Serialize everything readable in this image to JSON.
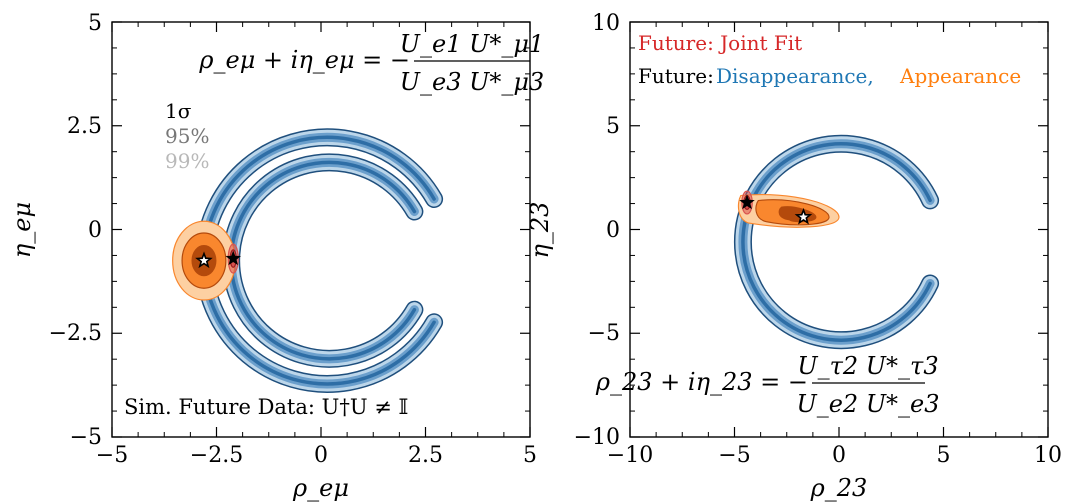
{
  "colors": {
    "blue_outer": "#bcd6ea",
    "blue_mid": "#6b9fcc",
    "blue_core": "#2e6ea6",
    "blue_edge": "#1f4f7d",
    "orange_outer": "#fdd0a2",
    "orange_mid": "#f9872e",
    "orange_core": "#b44a0c",
    "red_joint": "#d9534f",
    "legend_red": "#d62728",
    "legend_blue": "#1f77b4",
    "legend_orange": "#ff7f0e",
    "cl_1sigma": "#000000",
    "cl_95": "#777777",
    "cl_99": "#b8b8b8"
  },
  "chart_data": [
    {
      "type": "contour",
      "title": "",
      "formula": {
        "lhs": "ρ_eμ + iη_eμ = −",
        "numerator": "U_e1 U*_μ1",
        "denominator": "U_e3 U*_μ3"
      },
      "xlabel": "ρ_eμ",
      "ylabel": "η_eμ",
      "xlim": [
        -5,
        5
      ],
      "ylim": [
        -5,
        5
      ],
      "xticks": [
        "−5",
        "−2.5",
        "0",
        "2.5",
        "5"
      ],
      "yticks": [
        "−5",
        "−2.5",
        "0",
        "2.5",
        "5"
      ],
      "confidence_levels": [
        "1σ",
        "95%",
        "99%"
      ],
      "annotation": "Sim. Future Data: U†U ≠ 𝕀",
      "regions": [
        {
          "name": "Disappearance",
          "shape": "arc",
          "center": [
            0.2,
            -0.75
          ],
          "radius": 2.35,
          "from_deg": 30,
          "to_deg": 330
        },
        {
          "name": "Disappearance",
          "shape": "arc",
          "center": [
            0.15,
            -0.75
          ],
          "radius": 2.95,
          "from_deg": 30,
          "to_deg": 330
        },
        {
          "name": "Appearance",
          "shape": "blob",
          "center": [
            -2.8,
            -0.75
          ],
          "spread": [
            0.75,
            0.95
          ]
        },
        {
          "name": "Joint Fit",
          "shape": "blob",
          "center": [
            -2.1,
            -0.7
          ],
          "spread": [
            0.12,
            0.35
          ]
        }
      ],
      "markers": [
        {
          "kind": "true",
          "x": -2.1,
          "y": -0.7
        },
        {
          "kind": "fit",
          "x": -2.8,
          "y": -0.75
        }
      ]
    },
    {
      "type": "contour",
      "title": "",
      "formula": {
        "lhs": "ρ_23 + iη_23 = −",
        "numerator": "U_τ2 U*_τ3",
        "denominator": "U_e2 U*_e3"
      },
      "xlabel": "ρ_23",
      "ylabel": "η_23",
      "xlim": [
        -10,
        10
      ],
      "ylim": [
        -10,
        10
      ],
      "xticks": [
        "−10",
        "−5",
        "0",
        "5",
        "10"
      ],
      "yticks": [
        "−10",
        "−5",
        "0",
        "5",
        "10"
      ],
      "legend": {
        "joint": "Future: Joint Fit",
        "prefix": "Future:",
        "disappearance": "Disappearance,",
        "appearance": "Appearance",
        "position": "top-left"
      },
      "regions": [
        {
          "name": "Disappearance",
          "shape": "arc",
          "center": [
            0.1,
            -0.6
          ],
          "radius": 4.7,
          "from_deg": 25,
          "to_deg": 335
        },
        {
          "name": "Appearance",
          "shape": "plume",
          "center": [
            -1.7,
            0.6
          ],
          "extent": [
            -4.7,
            0.0
          ]
        },
        {
          "name": "Joint Fit",
          "shape": "blob",
          "center": [
            -4.4,
            1.3
          ],
          "spread": [
            0.25,
            0.55
          ]
        }
      ],
      "markers": [
        {
          "kind": "true",
          "x": -4.4,
          "y": 1.3
        },
        {
          "kind": "fit",
          "x": -1.7,
          "y": 0.6
        }
      ]
    }
  ]
}
